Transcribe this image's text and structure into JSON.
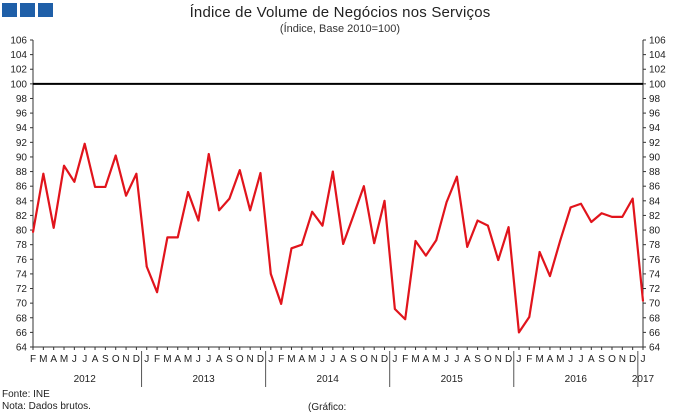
{
  "header": {
    "title": "Índice de Volume de Negócios nos Serviços",
    "subtitle": "(Índice, Base 2010=100)"
  },
  "colors": {
    "series": "#e1141c",
    "logo": "#1f5fa8",
    "reference": "#000000"
  },
  "footer": {
    "source": "Fonte: INE",
    "note": "Nota: Dados brutos.",
    "caption": "(Gráfico:"
  },
  "chart_data": {
    "type": "line",
    "title": "Índice de Volume de Negócios nos Serviços",
    "subtitle": "(Índice, Base 2010=100)",
    "xlabel": "",
    "ylabel": "",
    "ylim": [
      64,
      106
    ],
    "yticks": [
      64,
      66,
      68,
      70,
      72,
      74,
      76,
      78,
      80,
      82,
      84,
      86,
      88,
      90,
      92,
      94,
      96,
      98,
      100,
      102,
      104,
      106
    ],
    "reference_line": 100,
    "month_labels": [
      "F",
      "M",
      "A",
      "M",
      "J",
      "J",
      "A",
      "S",
      "O",
      "N",
      "D",
      "J",
      "F",
      "M",
      "A",
      "M",
      "J",
      "J",
      "A",
      "S",
      "O",
      "N",
      "D",
      "J",
      "F",
      "M",
      "A",
      "M",
      "J",
      "J",
      "A",
      "S",
      "O",
      "N",
      "D",
      "J",
      "F",
      "M",
      "A",
      "M",
      "J",
      "J",
      "A",
      "S",
      "O",
      "N",
      "D",
      "J",
      "F",
      "M",
      "A",
      "M",
      "J",
      "J",
      "A",
      "S",
      "O",
      "N",
      "D",
      "J"
    ],
    "year_labels": [
      "2012",
      "2013",
      "2014",
      "2015",
      "2016",
      "2017"
    ],
    "year_groups": [
      {
        "label": "2012",
        "start": 0,
        "end": 11
      },
      {
        "label": "2013",
        "start": 11,
        "end": 23
      },
      {
        "label": "2014",
        "start": 23,
        "end": 35
      },
      {
        "label": "2015",
        "start": 35,
        "end": 47
      },
      {
        "label": "2016",
        "start": 47,
        "end": 59
      },
      {
        "label": "2017",
        "start": 59,
        "end": 60
      }
    ],
    "series": [
      {
        "name": "Índice de Volume de Negócios nos Serviços",
        "color": "#e1141c",
        "start": "2012-02",
        "values": [
          79.7,
          87.7,
          80.3,
          88.8,
          86.6,
          91.8,
          85.9,
          85.9,
          90.2,
          84.7,
          87.7,
          75.0,
          71.5,
          79.0,
          79.0,
          85.2,
          81.3,
          90.4,
          82.7,
          84.3,
          88.2,
          82.7,
          87.8,
          74.0,
          69.9,
          77.5,
          78.0,
          82.5,
          80.6,
          88.0,
          78.1,
          82.0,
          86.0,
          78.2,
          84.0,
          69.2,
          67.8,
          78.5,
          76.5,
          78.6,
          83.8,
          87.3,
          77.7,
          81.3,
          80.6,
          75.9,
          80.4,
          66.0,
          68.1,
          77.0,
          73.7,
          78.6,
          83.1,
          83.6,
          81.1,
          82.3,
          81.8,
          81.8,
          84.3,
          70.3
        ]
      }
    ]
  }
}
